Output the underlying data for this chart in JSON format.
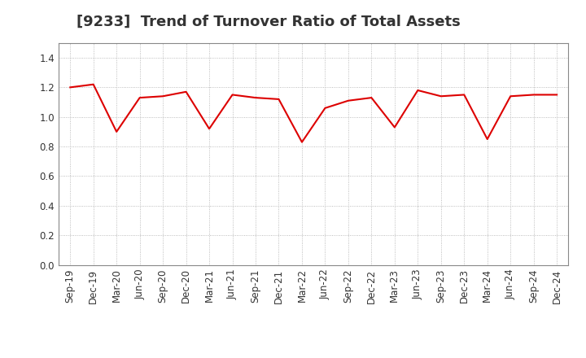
{
  "title": "[9233]  Trend of Turnover Ratio of Total Assets",
  "x_labels": [
    "Sep-19",
    "Dec-19",
    "Mar-20",
    "Jun-20",
    "Sep-20",
    "Dec-20",
    "Mar-21",
    "Jun-21",
    "Sep-21",
    "Dec-21",
    "Mar-22",
    "Jun-22",
    "Sep-22",
    "Dec-22",
    "Mar-23",
    "Jun-23",
    "Sep-23",
    "Dec-23",
    "Mar-24",
    "Jun-24",
    "Sep-24",
    "Dec-24"
  ],
  "y_values": [
    1.2,
    1.22,
    0.9,
    1.13,
    1.14,
    1.17,
    0.92,
    1.15,
    1.13,
    1.12,
    0.83,
    1.06,
    1.11,
    1.13,
    0.93,
    1.18,
    1.14,
    1.15,
    0.85,
    1.14,
    1.15,
    1.15
  ],
  "line_color": "#dd0000",
  "line_width": 1.5,
  "ylim": [
    0.0,
    1.5
  ],
  "yticks": [
    0.0,
    0.2,
    0.4,
    0.6,
    0.8,
    1.0,
    1.2,
    1.4
  ],
  "background_color": "#ffffff",
  "plot_bg_color": "#ffffff",
  "grid_color": "#aaaaaa",
  "title_fontsize": 13,
  "tick_fontsize": 8.5,
  "title_color": "#333333"
}
